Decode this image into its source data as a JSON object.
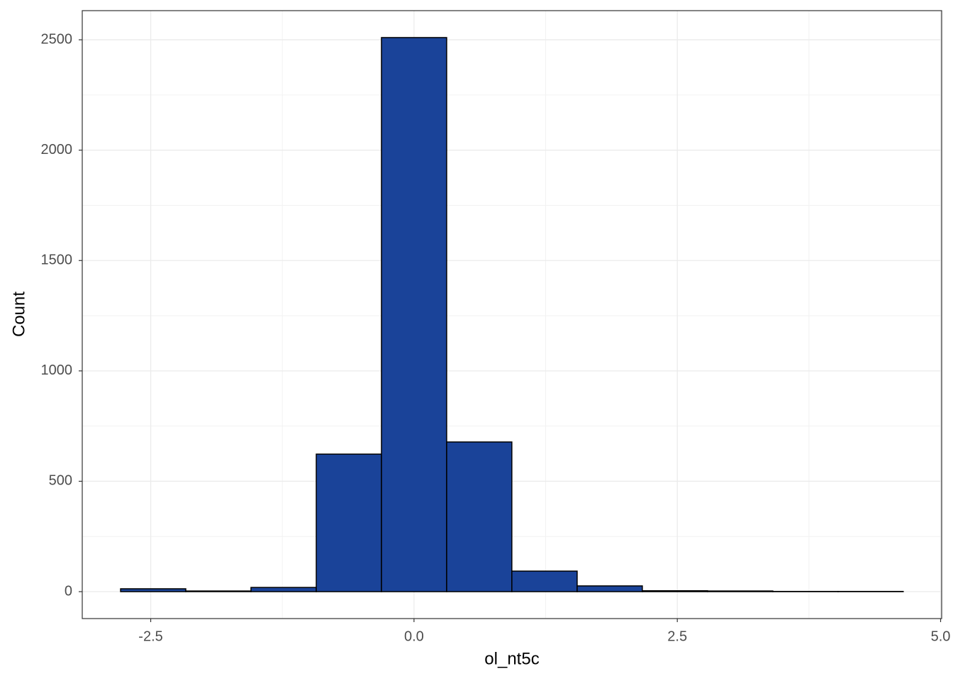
{
  "chart_data": {
    "type": "histogram",
    "x_label": "ol_nt5c",
    "y_label": "Count",
    "bins": [
      -2.786,
      -2.167,
      -1.548,
      -0.928,
      -0.309,
      0.31,
      0.929,
      1.549,
      2.168,
      2.787,
      3.407,
      4.026,
      4.645
    ],
    "values": [
      13,
      3,
      19,
      623,
      2510,
      678,
      93,
      26,
      4,
      3,
      1,
      1
    ],
    "color": "#1a4399",
    "edgecolor": "#000000",
    "xlim": [
      -3.15,
      5.01
    ],
    "ylim": [
      -122,
      2632
    ],
    "xticks": [
      -2.5,
      {
        "value": 0,
        "label": "0.0"
      },
      2.5,
      {
        "value": 5,
        "label": "5.0"
      }
    ],
    "yticks": [
      0,
      500,
      1000,
      1500,
      2000,
      2500
    ],
    "grid": true
  }
}
